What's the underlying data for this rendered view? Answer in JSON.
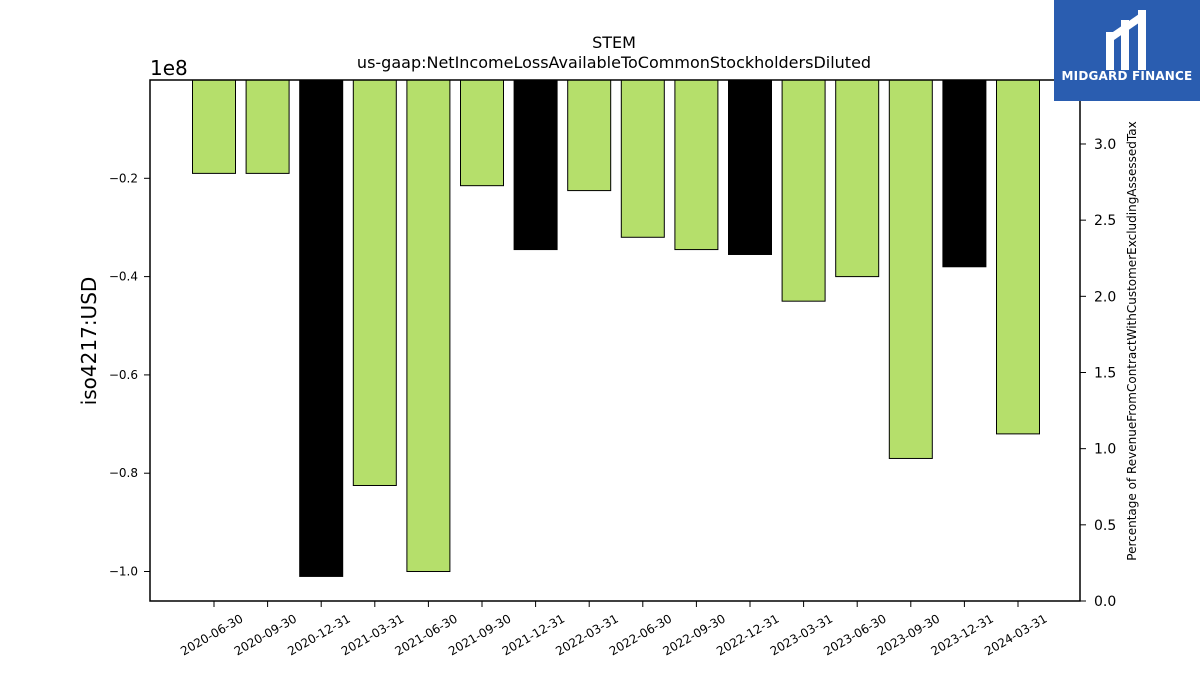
{
  "chart_data": {
    "type": "bar",
    "title": "STEM",
    "subtitle": "us-gaap:NetIncomeLossAvailableToCommonStockholdersDiluted",
    "ylabel": "iso4217:USD",
    "y2label": "Percentage of RevenueFromContractWithCustomerExcludingAssessedTax",
    "offset_label": "1e8",
    "categories": [
      "2020-06-30",
      "2020-09-30",
      "2020-12-31",
      "2021-03-31",
      "2021-06-30",
      "2021-09-30",
      "2021-12-31",
      "2022-03-31",
      "2022-06-30",
      "2022-09-30",
      "2022-12-31",
      "2023-03-31",
      "2023-06-30",
      "2023-09-30",
      "2023-12-31",
      "2024-03-31"
    ],
    "values": [
      -0.19,
      -0.19,
      -1.01,
      -0.825,
      -1.0,
      -0.215,
      -0.345,
      -0.225,
      -0.32,
      -0.345,
      -0.355,
      -0.45,
      -0.4,
      -0.77,
      -0.38,
      -0.72
    ],
    "bar_colors": [
      "#b5df6b",
      "#b5df6b",
      "#000000",
      "#b5df6b",
      "#b5df6b",
      "#b5df6b",
      "#000000",
      "#b5df6b",
      "#b5df6b",
      "#b5df6b",
      "#000000",
      "#b5df6b",
      "#b5df6b",
      "#b5df6b",
      "#000000",
      "#b5df6b"
    ],
    "yticks": [
      -1.0,
      -0.8,
      -0.6,
      -0.4,
      -0.2
    ],
    "ytick_labels": [
      "−1.0",
      "−0.8",
      "−0.6",
      "−0.4",
      "−0.2"
    ],
    "ylim": [
      -1.06,
      0.0
    ],
    "y2ticks": [
      0.0,
      0.5,
      1.0,
      1.5,
      2.0,
      2.5,
      3.0
    ],
    "y2tick_labels": [
      "0.0",
      "0.5",
      "1.0",
      "1.5",
      "2.0",
      "2.5",
      "3.0"
    ],
    "y2lim": [
      0.0,
      3.42
    ],
    "grid": false,
    "legend": "none"
  },
  "logo": {
    "text": "MIDGARD FINANCE",
    "colors": {
      "background": "#2a5db0",
      "foreground": "#ffffff"
    }
  }
}
